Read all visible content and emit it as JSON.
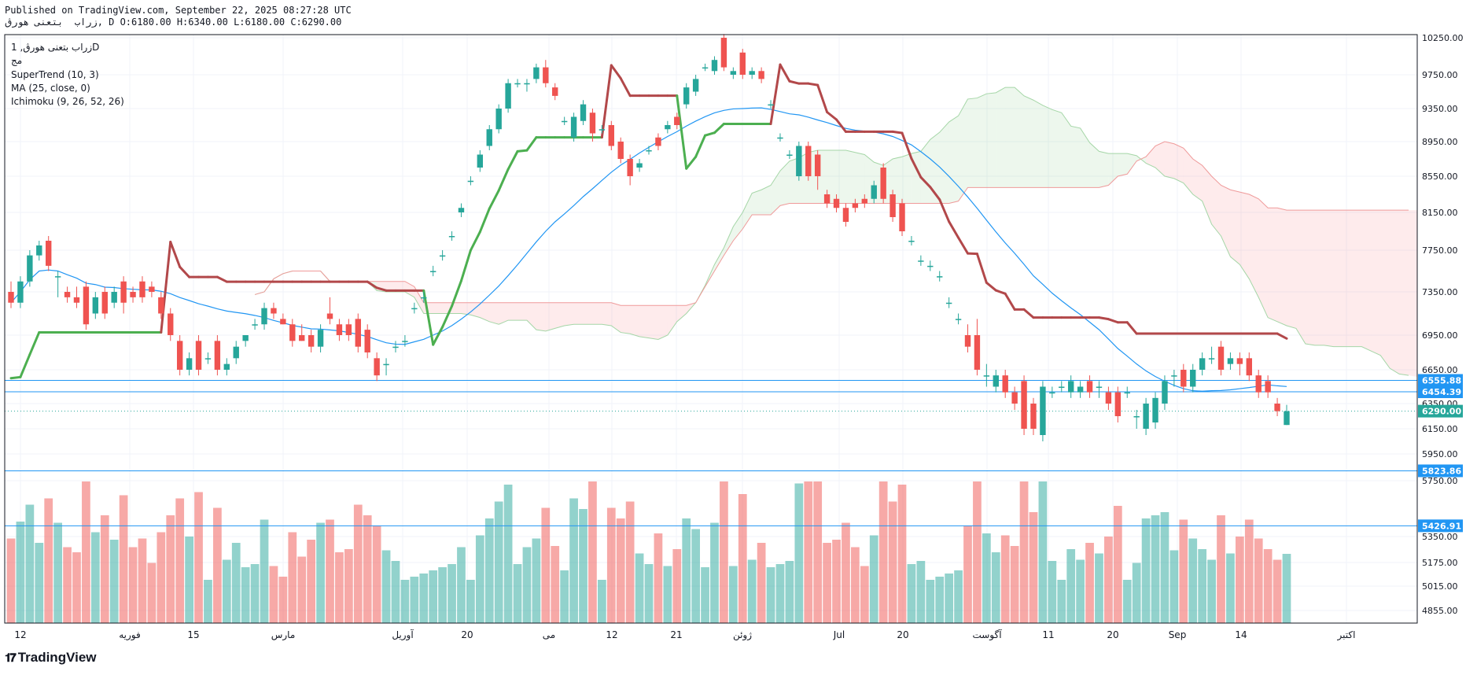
{
  "header": {
    "line1": "Published on TradingView.com, September 22, 2025 08:27:28 UTC",
    "line2": "زراب  بتعنی هورڨ, D O:6180.00 H:6340.00 L:6180.00 C:6290.00"
  },
  "legend": {
    "symbol": "زراب بتعنی هورڨ, 1D",
    "exchange": "مج",
    "indicators": [
      "SuperTrend (10, 3)",
      "MA (25, close, 0)",
      "Ichimoku (9, 26, 52, 26)"
    ]
  },
  "footer": {
    "brand": "TradingView"
  },
  "chart_data": {
    "type": "candlestick",
    "price_axis": {
      "ylim": [
        4700,
        10350
      ],
      "ticks": [
        "10250.00",
        "9750.00",
        "9350.00",
        "8950.00",
        "8550.00",
        "8150.00",
        "7750.00",
        "7350.00",
        "6950.00",
        "6650.00",
        "6350.00",
        "6150.00",
        "5950.00",
        "5750.00",
        "5350.00",
        "5175.00",
        "5015.00",
        "4855.00"
      ]
    },
    "time_axis": [
      "12",
      "فوریه",
      "15",
      "مارس",
      "آوریل",
      "20",
      "می",
      "12",
      "21",
      "ژوئن",
      "Jul",
      "20",
      "آگوست",
      "11",
      "20",
      "Sep",
      "14",
      "اکتبر"
    ],
    "horizontal_levels": [
      {
        "value": 6555.88,
        "label": "6555.88"
      },
      {
        "value": 6454.39,
        "label": "6454.39"
      },
      {
        "value": 5823.86,
        "label": "5823.86"
      },
      {
        "value": 5426.91,
        "label": "5426.91"
      }
    ],
    "last_price": {
      "value": 6290.0,
      "label": "6290.00"
    },
    "candles": [
      [
        7350,
        7250,
        7450,
        7200
      ],
      [
        7250,
        7450,
        7500,
        7200
      ],
      [
        7450,
        7700,
        7750,
        7400
      ],
      [
        7700,
        7800,
        7850,
        7650
      ],
      [
        7850,
        7600,
        7900,
        7550
      ],
      [
        7500,
        7500,
        7550,
        7300
      ],
      [
        7350,
        7300,
        7400,
        7250
      ],
      [
        7300,
        7250,
        7400,
        7200
      ],
      [
        7400,
        7050,
        7450,
        7000
      ],
      [
        7150,
        7300,
        7350,
        7100
      ],
      [
        7350,
        7150,
        7400,
        7100
      ],
      [
        7250,
        7350,
        7400,
        7200
      ],
      [
        7450,
        7250,
        7500,
        7150
      ],
      [
        7350,
        7300,
        7400,
        7250
      ],
      [
        7450,
        7300,
        7500,
        7250
      ],
      [
        7400,
        7350,
        7450,
        7300
      ],
      [
        7300,
        7150,
        7350,
        7100
      ],
      [
        7150,
        6950,
        7200,
        6900
      ],
      [
        6900,
        6650,
        6950,
        6600
      ],
      [
        6650,
        6750,
        6800,
        6600
      ],
      [
        6900,
        6650,
        6950,
        6600
      ],
      [
        6750,
        6750,
        6800,
        6700
      ],
      [
        6900,
        6650,
        6950,
        6600
      ],
      [
        6650,
        6700,
        6750,
        6600
      ],
      [
        6750,
        6850,
        6900,
        6700
      ],
      [
        6900,
        6950,
        6950,
        6850
      ],
      [
        7050,
        7050,
        7100,
        7000
      ],
      [
        7050,
        7200,
        7250,
        7000
      ],
      [
        7200,
        7150,
        7250,
        7100
      ],
      [
        7100,
        7050,
        7150,
        7050
      ],
      [
        7050,
        6900,
        7100,
        6850
      ],
      [
        6950,
        6900,
        7050,
        6900
      ],
      [
        6950,
        6850,
        7000,
        6800
      ],
      [
        6850,
        7000,
        7050,
        6800
      ],
      [
        7150,
        7100,
        7300,
        7050
      ],
      [
        7050,
        6950,
        7100,
        6900
      ],
      [
        7050,
        6950,
        7100,
        6900
      ],
      [
        7100,
        6850,
        7150,
        6800
      ],
      [
        7000,
        6800,
        7050,
        6750
      ],
      [
        6750,
        6600,
        6800,
        6550
      ],
      [
        6700,
        6700,
        6750,
        6600
      ],
      [
        6850,
        6850,
        6900,
        6800
      ],
      [
        6900,
        6900,
        6950,
        6850
      ],
      [
        7200,
        7200,
        7250,
        7150
      ],
      [
        7300,
        7300,
        7350,
        7250
      ],
      [
        7550,
        7550,
        7600,
        7500
      ],
      [
        7700,
        7700,
        7750,
        7650
      ],
      [
        7900,
        7900,
        7950,
        7850
      ],
      [
        8150,
        8200,
        8250,
        8100
      ],
      [
        8500,
        8500,
        8550,
        8450
      ],
      [
        8650,
        8800,
        8850,
        8600
      ],
      [
        8900,
        9100,
        9150,
        8850
      ],
      [
        9100,
        9350,
        9400,
        9050
      ],
      [
        9350,
        9650,
        9700,
        9300
      ],
      [
        9650,
        9650,
        9700,
        9600
      ],
      [
        9650,
        9650,
        9700,
        9550
      ],
      [
        9700,
        9850,
        9900,
        9650
      ],
      [
        9850,
        9650,
        9950,
        9600
      ],
      [
        9600,
        9500,
        9650,
        9450
      ],
      [
        9200,
        9200,
        9250,
        9150
      ],
      [
        9000,
        9250,
        9300,
        8950
      ],
      [
        9200,
        9400,
        9450,
        9150
      ],
      [
        9300,
        9050,
        9350,
        8950
      ],
      [
        9100,
        9100,
        9150,
        9050
      ],
      [
        9150,
        8900,
        9200,
        8850
      ],
      [
        8950,
        8750,
        9000,
        8700
      ],
      [
        8750,
        8550,
        8800,
        8450
      ],
      [
        8650,
        8700,
        8750,
        8600
      ],
      [
        8850,
        8850,
        8900,
        8800
      ],
      [
        9000,
        8900,
        9050,
        8850
      ],
      [
        9100,
        9150,
        9200,
        9050
      ],
      [
        9250,
        9150,
        9300,
        9100
      ],
      [
        9400,
        9600,
        9650,
        9350
      ],
      [
        9550,
        9700,
        9750,
        9500
      ],
      [
        9850,
        9850,
        9900,
        9800
      ],
      [
        9800,
        9950,
        10000,
        9750
      ],
      [
        10250,
        9850,
        10300,
        9800
      ],
      [
        9750,
        9800,
        9850,
        9700
      ],
      [
        10050,
        9750,
        10100,
        9700
      ],
      [
        9750,
        9800,
        9850,
        9700
      ],
      [
        9800,
        9700,
        9850,
        9650
      ],
      [
        9400,
        9400,
        9450,
        9350
      ],
      [
        9000,
        9000,
        9050,
        8950
      ],
      [
        8800,
        8800,
        8850,
        8750
      ],
      [
        8550,
        8900,
        8950,
        8500
      ],
      [
        8900,
        8550,
        8950,
        8500
      ],
      [
        8800,
        8550,
        8850,
        8400
      ],
      [
        8350,
        8250,
        8400,
        8200
      ],
      [
        8300,
        8200,
        8350,
        8150
      ],
      [
        8200,
        8050,
        8250,
        8000
      ],
      [
        8250,
        8200,
        8300,
        8150
      ],
      [
        8300,
        8250,
        8350,
        8200
      ],
      [
        8300,
        8450,
        8500,
        8250
      ],
      [
        8650,
        8300,
        8700,
        8250
      ],
      [
        8350,
        8100,
        8400,
        8050
      ],
      [
        8250,
        7950,
        8300,
        7900
      ],
      [
        7850,
        7850,
        7900,
        7800
      ],
      [
        7650,
        7650,
        7700,
        7600
      ],
      [
        7600,
        7600,
        7650,
        7550
      ],
      [
        7500,
        7500,
        7550,
        7450
      ],
      [
        7250,
        7250,
        7300,
        7200
      ],
      [
        7100,
        7100,
        7150,
        7050
      ],
      [
        6950,
        6850,
        7050,
        6800
      ],
      [
        6950,
        6650,
        7100,
        6600
      ],
      [
        6600,
        6600,
        6700,
        6500
      ],
      [
        6500,
        6600,
        6650,
        6450
      ],
      [
        6600,
        6450,
        6650,
        6400
      ],
      [
        6450,
        6350,
        6500,
        6300
      ],
      [
        6550,
        6150,
        6600,
        6100
      ],
      [
        6350,
        6150,
        6400,
        6100
      ],
      [
        6100,
        6500,
        6550,
        6050
      ],
      [
        6450,
        6450,
        6500,
        6400
      ],
      [
        6500,
        6500,
        6550,
        6450
      ],
      [
        6450,
        6550,
        6600,
        6400
      ],
      [
        6450,
        6500,
        6550,
        6400
      ],
      [
        6550,
        6450,
        6600,
        6400
      ],
      [
        6500,
        6500,
        6550,
        6400
      ],
      [
        6450,
        6350,
        6500,
        6300
      ],
      [
        6450,
        6250,
        6500,
        6200
      ],
      [
        6450,
        6450,
        6500,
        6400
      ],
      [
        6250,
        6250,
        6300,
        6150
      ],
      [
        6150,
        6350,
        6400,
        6100
      ],
      [
        6200,
        6400,
        6450,
        6150
      ],
      [
        6350,
        6550,
        6600,
        6300
      ],
      [
        6600,
        6600,
        6650,
        6500
      ],
      [
        6650,
        6500,
        6700,
        6450
      ],
      [
        6500,
        6650,
        6700,
        6450
      ],
      [
        6650,
        6750,
        6800,
        6600
      ],
      [
        6750,
        6750,
        6850,
        6700
      ],
      [
        6850,
        6650,
        6900,
        6600
      ],
      [
        6700,
        6750,
        6800,
        6650
      ],
      [
        6750,
        6700,
        6800,
        6600
      ],
      [
        6750,
        6600,
        6800,
        6550
      ],
      [
        6600,
        6450,
        6650,
        6400
      ],
      [
        6550,
        6450,
        6600,
        6400
      ],
      [
        6350,
        6290,
        6400,
        6250
      ],
      [
        6180,
        6290,
        6340,
        6180
      ]
    ]
  }
}
